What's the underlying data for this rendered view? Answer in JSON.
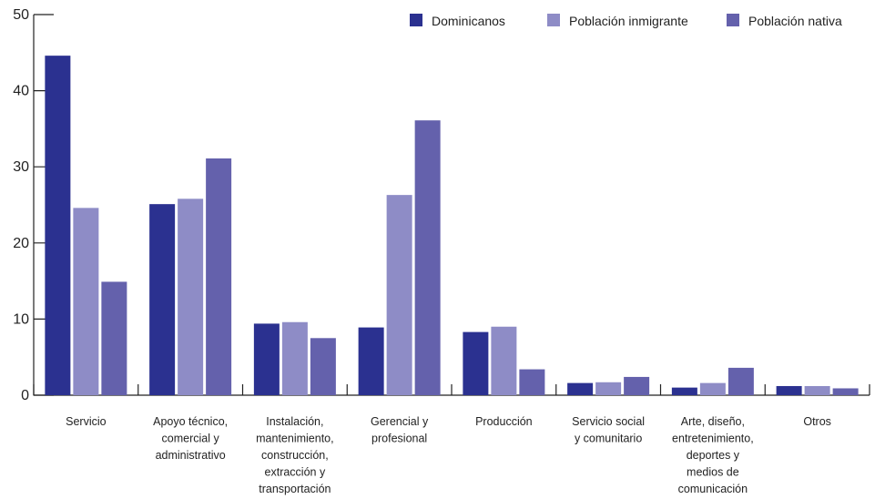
{
  "chart_data": {
    "type": "bar",
    "title": "",
    "xlabel": "",
    "ylabel": "",
    "ylim": [
      0,
      50
    ],
    "yticks": [
      0,
      10,
      20,
      30,
      40,
      50
    ],
    "grid": false,
    "legend_position": "top-right",
    "categories": [
      [
        "Servicio"
      ],
      [
        "Apoyo técnico,",
        "comercial y",
        "administrativo"
      ],
      [
        "Instalación,",
        "mantenimiento,",
        "construcción,",
        "extracción y",
        "transportación"
      ],
      [
        "Gerencial y",
        "profesional"
      ],
      [
        "Producción"
      ],
      [
        "Servicio social",
        "y comunitario"
      ],
      [
        "Arte, diseño,",
        "entretenimiento,",
        "deportes y",
        "medios de",
        "comunicación"
      ],
      [
        "Otros"
      ]
    ],
    "series": [
      {
        "name": "Dominicanos",
        "color": "#2b3190",
        "values": [
          44.6,
          25.1,
          9.4,
          8.9,
          8.3,
          1.6,
          1.0,
          1.2
        ]
      },
      {
        "name": "Población inmigrante",
        "color": "#8e8cc6",
        "values": [
          24.6,
          25.8,
          9.6,
          26.3,
          9.0,
          1.7,
          1.6,
          1.2
        ]
      },
      {
        "name": "Población nativa",
        "color": "#6461ac",
        "values": [
          14.9,
          31.1,
          7.5,
          36.1,
          3.4,
          2.4,
          3.6,
          0.9
        ]
      }
    ]
  }
}
